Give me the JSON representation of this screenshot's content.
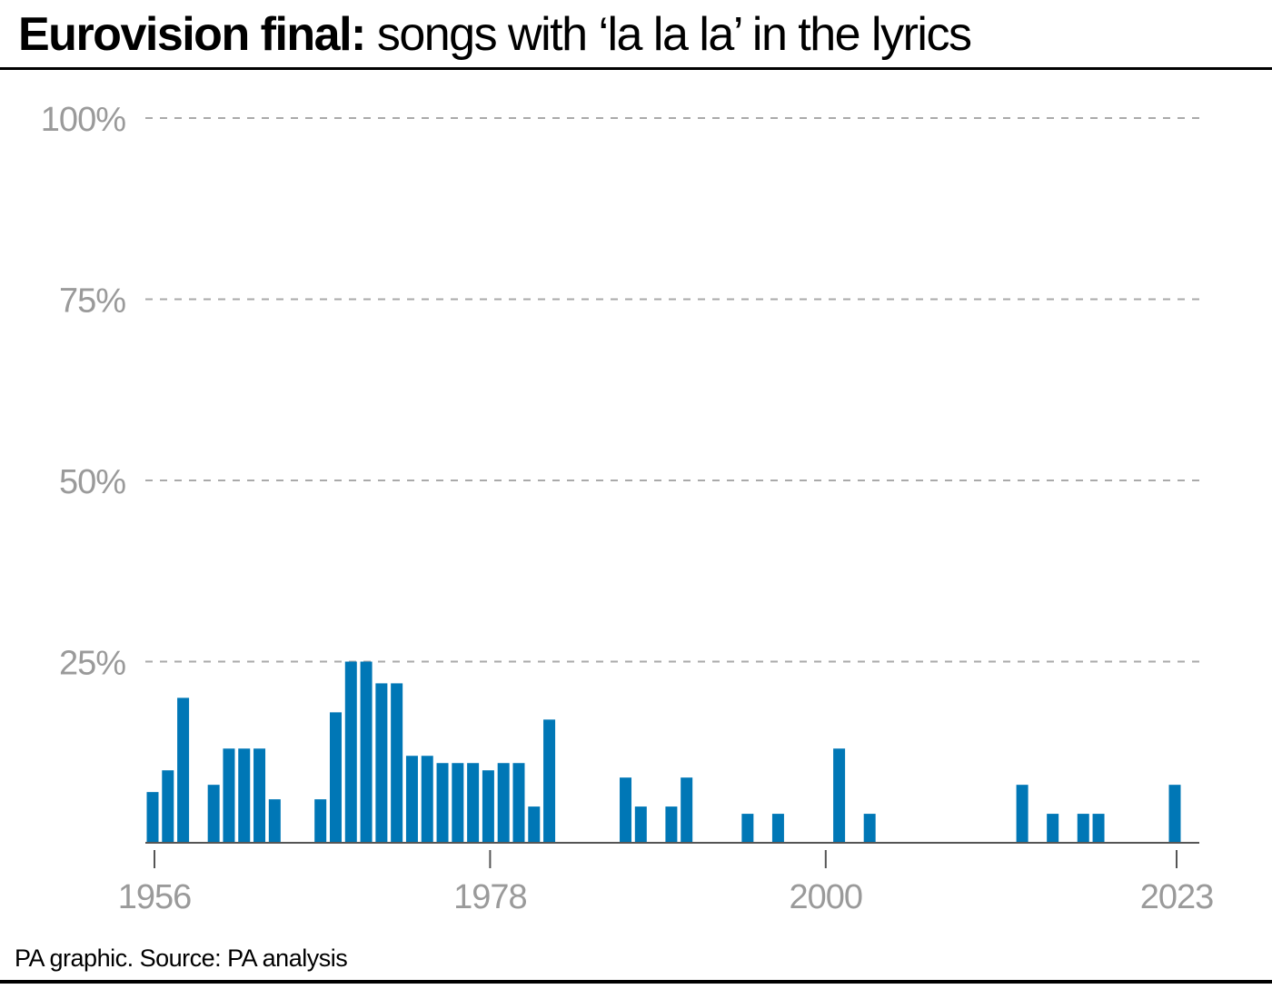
{
  "header": {
    "title_bold": "Eurovision final:",
    "title_rest": "songs with ‘la la la’ in the lyrics"
  },
  "footer": {
    "source": "PA graphic. Source: PA analysis"
  },
  "colors": {
    "bar": "#0077b6",
    "grid": "#aaaaaa",
    "axis": "#555555",
    "tick_text": "#9a9a9a"
  },
  "chart_data": {
    "type": "bar",
    "title": "Eurovision final: songs with ‘la la la’ in the lyrics",
    "xlabel": "",
    "ylabel": "",
    "unit": "%",
    "ylim": [
      0,
      100
    ],
    "yticks": [
      25,
      50,
      75,
      100
    ],
    "ytick_labels": [
      "25%",
      "50%",
      "75%",
      "100%"
    ],
    "xlim": [
      1956,
      2023
    ],
    "xticks": [
      1956,
      1978,
      2000,
      2023
    ],
    "xtick_labels": [
      "1956",
      "1978",
      "2000",
      "2023"
    ],
    "grid": true,
    "legend": "none",
    "x": [
      1956,
      1957,
      1958,
      1959,
      1960,
      1961,
      1962,
      1963,
      1964,
      1965,
      1966,
      1967,
      1968,
      1969,
      1970,
      1971,
      1972,
      1973,
      1974,
      1975,
      1976,
      1977,
      1978,
      1979,
      1980,
      1981,
      1982,
      1983,
      1984,
      1985,
      1986,
      1987,
      1988,
      1989,
      1990,
      1991,
      1992,
      1993,
      1994,
      1995,
      1996,
      1997,
      1998,
      1999,
      2000,
      2001,
      2002,
      2003,
      2004,
      2005,
      2006,
      2007,
      2008,
      2009,
      2010,
      2011,
      2012,
      2013,
      2014,
      2015,
      2016,
      2017,
      2018,
      2019,
      2020,
      2021,
      2022,
      2023
    ],
    "values": [
      7,
      10,
      20,
      0,
      8,
      13,
      13,
      13,
      6,
      0,
      0,
      6,
      18,
      25,
      25,
      22,
      22,
      12,
      12,
      11,
      11,
      11,
      10,
      11,
      11,
      5,
      17,
      0,
      0,
      0,
      0,
      9,
      5,
      0,
      5,
      9,
      0,
      0,
      0,
      4,
      0,
      4,
      0,
      0,
      0,
      13,
      0,
      4,
      0,
      0,
      0,
      0,
      0,
      0,
      0,
      0,
      0,
      8,
      0,
      4,
      0,
      4,
      4,
      0,
      0,
      0,
      0,
      8
    ]
  }
}
